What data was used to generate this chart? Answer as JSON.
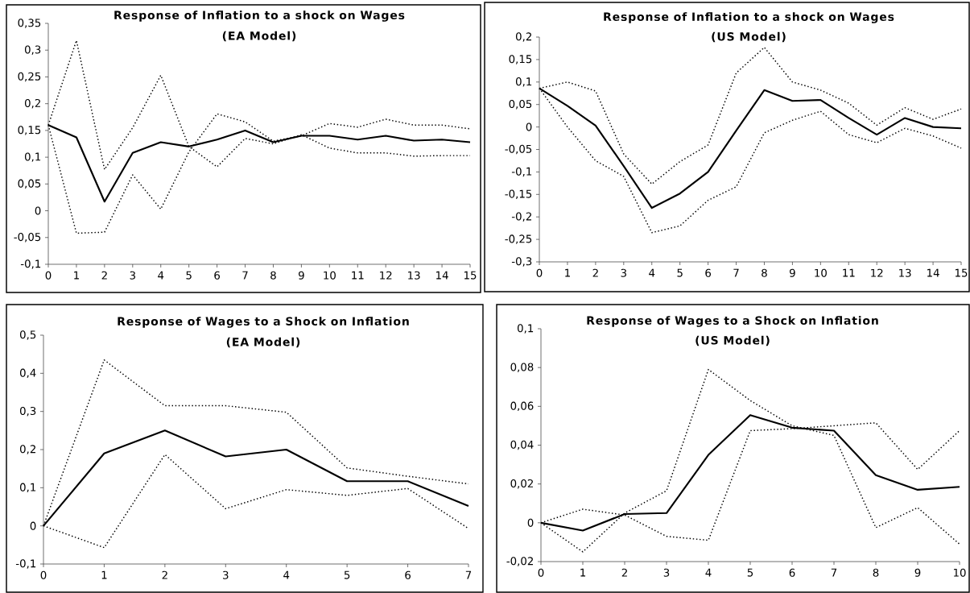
{
  "chart_data": [
    {
      "type": "line",
      "title": "Response of Inflation to a shock on Wages",
      "subtitle": "(EA Model)",
      "x": [
        0,
        1,
        2,
        3,
        4,
        5,
        6,
        7,
        8,
        9,
        10,
        11,
        12,
        13,
        14,
        15
      ],
      "xlim": [
        0,
        15
      ],
      "xticks": [
        0,
        1,
        2,
        3,
        4,
        5,
        6,
        7,
        8,
        9,
        10,
        11,
        12,
        13,
        14,
        15
      ],
      "ylim": [
        -0.1,
        0.35
      ],
      "yticks": [
        {
          "value": -0.1,
          "label": "-0,1"
        },
        {
          "value": -0.05,
          "label": "-0,05"
        },
        0,
        {
          "value": 0.05,
          "label": "0,05"
        },
        {
          "value": 0.1,
          "label": "0,1"
        },
        {
          "value": 0.15,
          "label": "0,15"
        },
        {
          "value": 0.2,
          "label": "0,2"
        },
        {
          "value": 0.25,
          "label": "0,25"
        },
        {
          "value": 0.3,
          "label": "0,3"
        },
        {
          "value": 0.35,
          "label": "0,35"
        }
      ],
      "series": [
        {
          "color": "#000000",
          "line_style": "dotted",
          "values": [
            0.16,
            0.318,
            0.077,
            0.155,
            0.253,
            0.12,
            0.082,
            0.135,
            0.125,
            0.142,
            0.117,
            0.108,
            0.108,
            0.102,
            0.103,
            0.103
          ]
        },
        {
          "color": "#000000",
          "line_style": "dotted",
          "values": [
            0.16,
            -0.042,
            -0.04,
            0.067,
            0.003,
            0.11,
            0.181,
            0.166,
            0.13,
            0.14,
            0.163,
            0.156,
            0.171,
            0.16,
            0.16,
            0.153
          ]
        },
        {
          "color": "#000000",
          "line_style": "solid",
          "values": [
            0.16,
            0.137,
            0.017,
            0.108,
            0.128,
            0.12,
            0.133,
            0.15,
            0.128,
            0.14,
            0.14,
            0.133,
            0.14,
            0.131,
            0.133,
            0.128
          ]
        }
      ]
    },
    {
      "type": "line",
      "title": "Response of Inflation to a shock on Wages",
      "subtitle": "(US Model)",
      "x": [
        0,
        1,
        2,
        3,
        4,
        5,
        6,
        7,
        8,
        9,
        10,
        11,
        12,
        13,
        14,
        15
      ],
      "xlim": [
        0,
        15
      ],
      "xticks": [
        0,
        1,
        2,
        3,
        4,
        5,
        6,
        7,
        8,
        9,
        10,
        11,
        12,
        13,
        14,
        15
      ],
      "ylim": [
        -0.3,
        0.2
      ],
      "yticks": [
        {
          "value": -0.3,
          "label": "-0,3"
        },
        {
          "value": -0.25,
          "label": "-0,25"
        },
        {
          "value": -0.2,
          "label": "-0,2"
        },
        {
          "value": -0.15,
          "label": "-0,15"
        },
        {
          "value": -0.1,
          "label": "-0,1"
        },
        {
          "value": -0.05,
          "label": "-0,05"
        },
        0,
        {
          "value": 0.05,
          "label": "0,05"
        },
        {
          "value": 0.1,
          "label": "0,1"
        },
        {
          "value": 0.15,
          "label": "0,15"
        },
        {
          "value": 0.2,
          "label": "0,2"
        }
      ],
      "series": [
        {
          "color": "#000000",
          "line_style": "dotted",
          "values": [
            0.086,
            0.1,
            0.08,
            -0.06,
            -0.127,
            -0.077,
            -0.04,
            0.12,
            0.177,
            0.1,
            0.082,
            0.053,
            0.004,
            0.043,
            0.017,
            0.04
          ]
        },
        {
          "color": "#000000",
          "line_style": "dotted",
          "values": [
            0.086,
            0.0,
            -0.075,
            -0.11,
            -0.235,
            -0.22,
            -0.163,
            -0.133,
            -0.013,
            0.015,
            0.035,
            -0.017,
            -0.035,
            -0.003,
            -0.02,
            -0.047
          ]
        },
        {
          "color": "#000000",
          "line_style": "solid",
          "values": [
            0.086,
            0.047,
            0.003,
            -0.087,
            -0.18,
            -0.148,
            -0.1,
            -0.008,
            0.082,
            0.058,
            0.06,
            0.02,
            -0.017,
            0.02,
            0.0,
            -0.003
          ]
        }
      ]
    },
    {
      "type": "line",
      "title": "Response of Wages to a Shock on Inflation",
      "subtitle": "(EA Model)",
      "x": [
        0,
        1,
        2,
        3,
        4,
        5,
        6,
        7
      ],
      "xlim": [
        0,
        7
      ],
      "xticks": [
        0,
        1,
        2,
        3,
        4,
        5,
        6,
        7
      ],
      "ylim": [
        -0.1,
        0.5
      ],
      "yticks": [
        {
          "value": -0.1,
          "label": "-0,1"
        },
        0,
        {
          "value": 0.1,
          "label": "0,1"
        },
        {
          "value": 0.2,
          "label": "0,2"
        },
        {
          "value": 0.3,
          "label": "0,3"
        },
        {
          "value": 0.4,
          "label": "0,4"
        },
        {
          "value": 0.5,
          "label": "0,5"
        }
      ],
      "series": [
        {
          "color": "#000000",
          "line_style": "dotted",
          "values": [
            0,
            0.435,
            0.315,
            0.315,
            0.298,
            0.152,
            0.13,
            0.11
          ]
        },
        {
          "color": "#000000",
          "line_style": "dotted",
          "values": [
            0,
            -0.057,
            0.187,
            0.045,
            0.095,
            0.08,
            0.098,
            -0.007
          ]
        },
        {
          "color": "#000000",
          "line_style": "solid",
          "values": [
            0,
            0.19,
            0.25,
            0.182,
            0.2,
            0.117,
            0.117,
            0.052
          ]
        }
      ]
    },
    {
      "type": "line",
      "title": "Response of Wages to a Shock on Inflation",
      "subtitle": "(US Model)",
      "x": [
        0,
        1,
        2,
        3,
        4,
        5,
        6,
        7,
        8,
        9,
        10
      ],
      "xlim": [
        0,
        10
      ],
      "xticks": [
        0,
        1,
        2,
        3,
        4,
        5,
        6,
        7,
        8,
        9,
        10
      ],
      "ylim": [
        -0.02,
        0.1
      ],
      "yticks": [
        {
          "value": -0.02,
          "label": "-0,02"
        },
        0,
        {
          "value": 0.02,
          "label": "0,02"
        },
        {
          "value": 0.04,
          "label": "0,04"
        },
        {
          "value": 0.06,
          "label": "0,06"
        },
        {
          "value": 0.08,
          "label": "0,08"
        },
        {
          "value": 0.1,
          "label": "0,1"
        }
      ],
      "series": [
        {
          "color": "#000000",
          "line_style": "dotted",
          "values": [
            0,
            0.007,
            0.004,
            -0.007,
            -0.009,
            0.0475,
            0.0485,
            0.05,
            0.0515,
            0.0275,
            0.0475
          ]
        },
        {
          "color": "#000000",
          "line_style": "dotted",
          "values": [
            0,
            -0.015,
            0.005,
            0.0165,
            0.079,
            0.063,
            0.05,
            0.045,
            -0.0025,
            0.0078,
            -0.011
          ]
        },
        {
          "color": "#000000",
          "line_style": "solid",
          "values": [
            0,
            -0.004,
            0.0045,
            0.005,
            0.035,
            0.0555,
            0.049,
            0.0475,
            0.0245,
            0.017,
            0.0185
          ]
        }
      ]
    }
  ]
}
